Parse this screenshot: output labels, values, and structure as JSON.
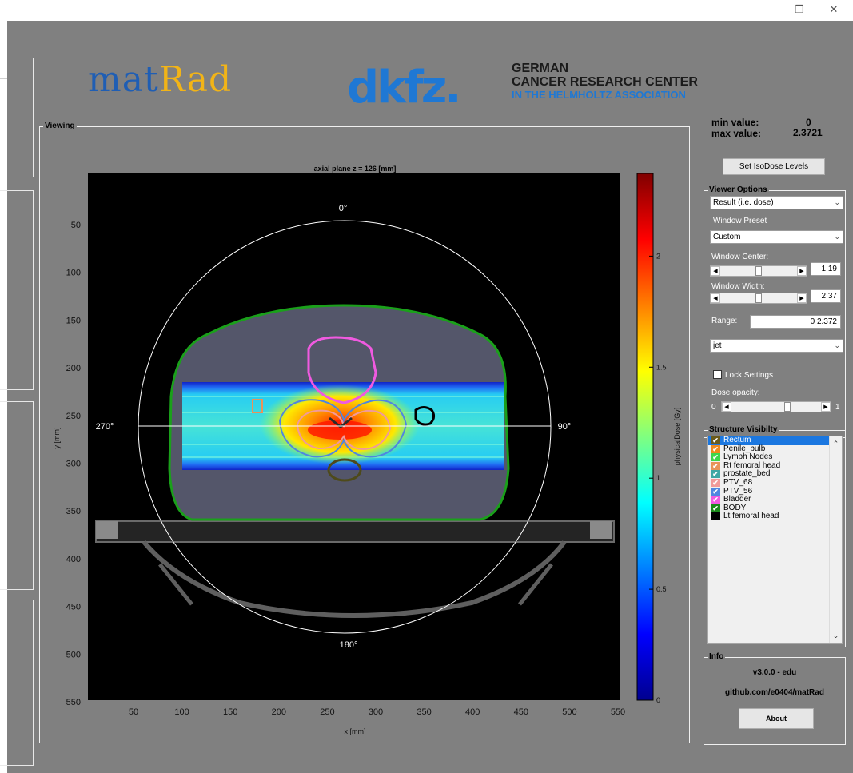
{
  "window": {
    "controls": {
      "minimize": "—",
      "restore": "❐",
      "close": "✕"
    }
  },
  "logos": {
    "matrad_part1": "mat",
    "matrad_part2": "Rad",
    "dkfz": "dkfz.",
    "dkfz_line1": "GERMAN",
    "dkfz_line2": "CANCER RESEARCH CENTER",
    "dkfz_line3": "IN THE HELMHOLTZ ASSOCIATION"
  },
  "viewing": {
    "label": "Viewing",
    "plot_title": "axial plane z = 126 [mm]",
    "xlabel": "x [mm]",
    "ylabel": "y [mm]",
    "x_ticks": [
      "50",
      "100",
      "150",
      "200",
      "250",
      "300",
      "350",
      "400",
      "450",
      "500",
      "550"
    ],
    "y_ticks": [
      "50",
      "100",
      "150",
      "200",
      "250",
      "300",
      "350",
      "400",
      "450",
      "500",
      "550"
    ],
    "angles": {
      "top": "0°",
      "right": "90°",
      "bottom": "180°",
      "left": "270°"
    },
    "colorbar_label": "physicalDose [Gy]",
    "colorbar_ticks": [
      "0",
      "0.5",
      "1",
      "1.5",
      "2"
    ]
  },
  "minmax": {
    "min_label": "min value:",
    "min_value": "0",
    "max_label": "max  value:",
    "max_value": "2.3721"
  },
  "buttons": {
    "set_isodose": "Set IsoDose Levels",
    "about": "About"
  },
  "viewer_options": {
    "label": "Viewer Options",
    "display_select": "Result (i.e. dose)",
    "window_preset_label": "Window Preset",
    "window_preset_value": "Custom",
    "window_center_label": "Window Center:",
    "window_center_value": "1.19",
    "window_width_label": "Window Width:",
    "window_width_value": "2.37",
    "range_label": "Range:",
    "range_value": "0    2.372",
    "colormap_value": "jet",
    "lock_label": "Lock Settings",
    "opacity_label": "Dose opacity:",
    "opacity_min": "0",
    "opacity_max": "1"
  },
  "structure_visibility": {
    "label": "Structure Visibilty",
    "items": [
      {
        "name": "Rectum",
        "color": "#6b5a1a",
        "checked": true,
        "selected": true
      },
      {
        "name": "Penile_bulb",
        "color": "#f08a1c",
        "checked": true,
        "selected": false
      },
      {
        "name": "Lymph Nodes",
        "color": "#3ed64a",
        "checked": true,
        "selected": false
      },
      {
        "name": "Rt femoral head",
        "color": "#e8935a",
        "checked": true,
        "selected": false
      },
      {
        "name": "prostate_bed",
        "color": "#3fa7a4",
        "checked": true,
        "selected": false
      },
      {
        "name": "PTV_68",
        "color": "#f09a9a",
        "checked": true,
        "selected": false
      },
      {
        "name": "PTV_56",
        "color": "#4f86e0",
        "checked": true,
        "selected": false
      },
      {
        "name": "Bladder",
        "color": "#f05ae0",
        "checked": true,
        "selected": false
      },
      {
        "name": "BODY",
        "color": "#1a8a1a",
        "checked": true,
        "selected": false
      },
      {
        "name": "Lt femoral head",
        "color": "#000000",
        "checked": false,
        "selected": false
      }
    ]
  },
  "info": {
    "label": "Info",
    "version": "v3.0.0 - edu",
    "repo": "github.com/e0404/matRad"
  }
}
